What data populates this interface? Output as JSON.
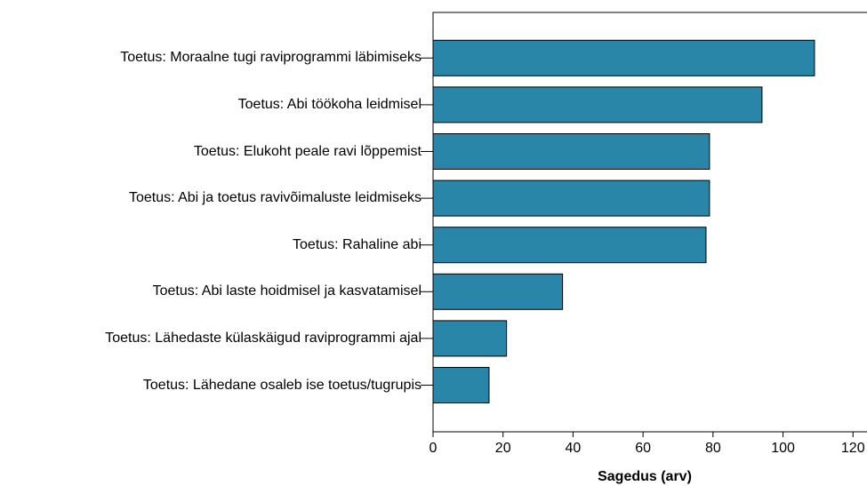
{
  "chart_data": {
    "type": "bar",
    "orientation": "horizontal",
    "categories": [
      "Toetus: Moraalne tugi raviprogrammi läbimiseks",
      "Toetus: Abi töökoha leidmisel",
      "Toetus: Elukoht peale ravi lõppemist",
      "Toetus: Abi ja toetus ravivõimaluste leidmiseks",
      "Toetus: Rahaline abi",
      "Toetus: Abi laste hoidmisel ja kasvatamisel",
      "Toetus: Lähedaste külaskäigud raviprogrammi ajal",
      "Toetus: Lähedane osaleb ise toetus/tugrupis"
    ],
    "values": [
      109,
      94,
      79,
      79,
      78,
      37,
      21,
      16
    ],
    "color": "#2986a8",
    "x_label": "Sagedus (arv)",
    "xlim": [
      0,
      124
    ],
    "xticks": [
      0,
      20,
      40,
      60,
      80,
      100,
      120
    ]
  }
}
